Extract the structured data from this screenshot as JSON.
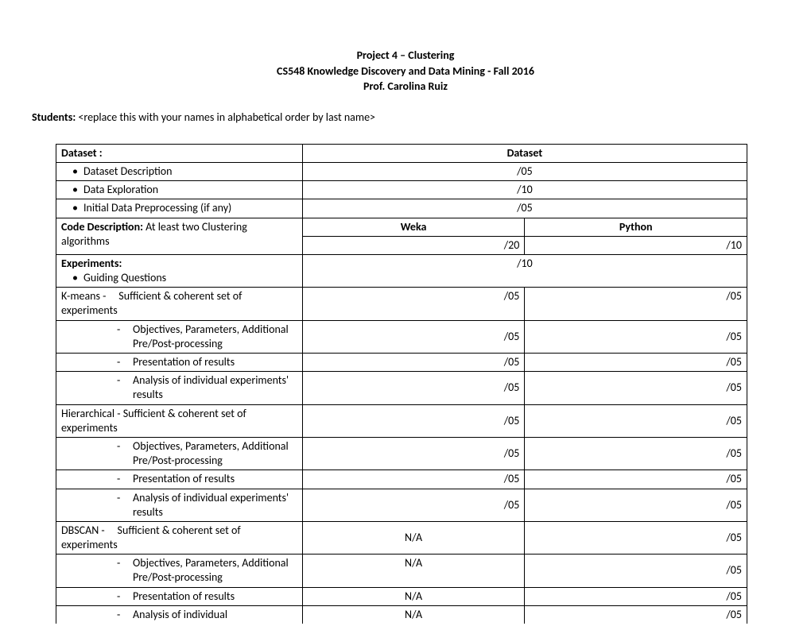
{
  "header": {
    "title": "Project 4 – Clustering",
    "course": "CS548 Knowledge Discovery and Data Mining - Fall 2016",
    "prof": "Prof. Carolina Ruiz"
  },
  "students": {
    "label": "Students:",
    "placeholder": "<replace this with your names in alphabetical order by last name>"
  },
  "table": {
    "dataset_label": "Dataset :",
    "dataset_header": "Dataset",
    "dataset_desc": "Dataset Description",
    "dataset_desc_score": "/05",
    "data_exploration": "Data Exploration",
    "data_exploration_score": "/10",
    "initial_preprocessing": "Initial Data Preprocessing (if any)",
    "initial_preprocessing_score": "/05",
    "code_desc_label": "Code Description:",
    "code_desc_text": " At least two Clustering algorithms",
    "weka_label": "Weka",
    "python_label": "Python",
    "weka_score": "/20",
    "python_score": "/10",
    "experiments_label": "Experiments:",
    "guiding_questions": "Guiding Questions",
    "guiding_score": "/10",
    "kmeans_label": "K-means   -",
    "kmeans_sufficient": "Sufficient & coherent set of experiments",
    "score_05": "/05",
    "objectives": "Objectives, Parameters, Additional Pre/Post-processing",
    "presentation": "Presentation of results",
    "analysis": "Analysis of individual experiments' results",
    "hierarchical_label": "Hierarchical  - Sufficient & coherent set of experiments",
    "dbscan_label": "DBSCAN   -",
    "dbscan_sufficient": "Sufficient & coherent set of experiments",
    "na": "N/A",
    "analysis_individual": "Analysis of individual"
  }
}
